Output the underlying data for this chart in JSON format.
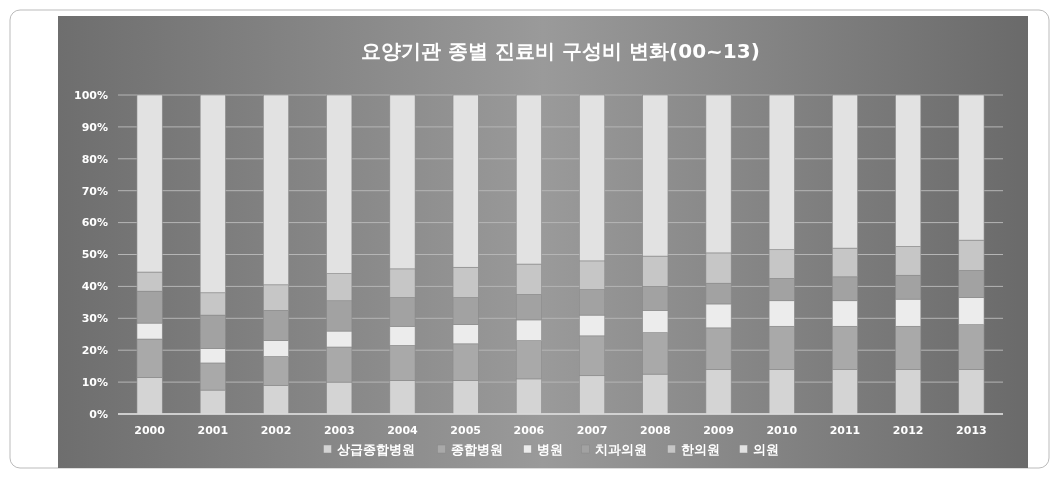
{
  "chart_data": {
    "type": "bar",
    "stacked": true,
    "title": "요양기관 종별 진료비 구성비 변화(00~13)",
    "categories": [
      "2000",
      "2001",
      "2002",
      "2003",
      "2004",
      "2005",
      "2006",
      "2007",
      "2008",
      "2009",
      "2010",
      "2011",
      "2012",
      "2013"
    ],
    "series": [
      {
        "name": "상급종합병원",
        "color": "#d4d4d4",
        "values": [
          11.5,
          7.5,
          9,
          10,
          10.5,
          10.5,
          11,
          12,
          12.5,
          14,
          14,
          14,
          14,
          14
        ]
      },
      {
        "name": "종합병원",
        "color": "#a9a9a9",
        "values": [
          12,
          8.5,
          9,
          11,
          11,
          11.5,
          12,
          12.5,
          13,
          13,
          13.5,
          13.5,
          13.5,
          14
        ]
      },
      {
        "name": "병원",
        "color": "#ececec",
        "values": [
          5,
          4.5,
          5,
          5,
          6,
          6,
          6.5,
          6.5,
          7,
          7.5,
          8,
          8,
          8.5,
          8.5
        ]
      },
      {
        "name": "치과의원",
        "color": "#a2a2a2",
        "values": [
          10,
          10.5,
          9.5,
          9.5,
          9,
          8.5,
          8,
          8,
          7.5,
          6.5,
          7,
          7.5,
          7.5,
          8.5
        ]
      },
      {
        "name": "한의원",
        "color": "#c6c6c6",
        "values": [
          6,
          7,
          8,
          8.5,
          9,
          9.5,
          9.5,
          9,
          9.5,
          9.5,
          9,
          9,
          9,
          9.5
        ]
      },
      {
        "name": "의원",
        "color": "#e2e2e2",
        "values": [
          55.5,
          62,
          59.5,
          56,
          54.5,
          54,
          53,
          52,
          50.5,
          49.5,
          48.5,
          48,
          47.5,
          45.5
        ]
      }
    ],
    "ylim": [
      0,
      100
    ],
    "yticks": [
      {
        "value": 0,
        "label": "0%"
      },
      {
        "value": 10,
        "label": "10%"
      },
      {
        "value": 20,
        "label": "20%"
      },
      {
        "value": 30,
        "label": "30%"
      },
      {
        "value": 40,
        "label": "40%"
      },
      {
        "value": 50,
        "label": "50%"
      },
      {
        "value": 60,
        "label": "60%"
      },
      {
        "value": 70,
        "label": "70%"
      },
      {
        "value": 80,
        "label": "80%"
      },
      {
        "value": 90,
        "label": "90%"
      },
      {
        "value": 100,
        "label": "100%"
      }
    ],
    "grid": "y",
    "legend": "bottom"
  }
}
